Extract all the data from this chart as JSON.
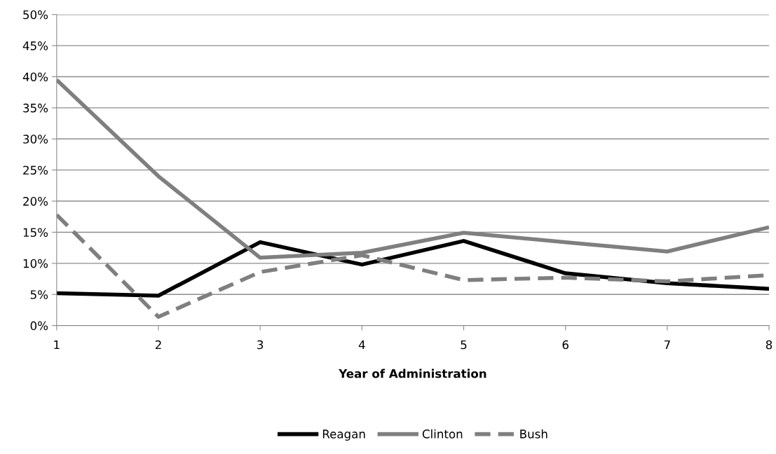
{
  "chart_data": {
    "type": "line",
    "xlabel": "Year of Administration",
    "x": [
      1,
      2,
      3,
      4,
      5,
      6,
      7,
      8
    ],
    "xlim": [
      1,
      8
    ],
    "xticks": [
      1,
      2,
      3,
      4,
      5,
      6,
      7,
      8
    ],
    "ylim": [
      0,
      50
    ],
    "yticks": [
      {
        "value": 0,
        "label": "0%"
      },
      {
        "value": 5,
        "label": "5%"
      },
      {
        "value": 10,
        "label": "10%"
      },
      {
        "value": 15,
        "label": "15%"
      },
      {
        "value": 20,
        "label": "20%"
      },
      {
        "value": 25,
        "label": "25%"
      },
      {
        "value": 30,
        "label": "30%"
      },
      {
        "value": 35,
        "label": "35%"
      },
      {
        "value": 40,
        "label": "40%"
      },
      {
        "value": 45,
        "label": "45%"
      },
      {
        "value": 50,
        "label": "50%"
      }
    ],
    "grid": "y",
    "legend": "bottom",
    "marker": "none",
    "series": [
      {
        "name": "Reagan",
        "color": "#000000",
        "line_style": "solid",
        "values": [
          5.2,
          4.8,
          13.4,
          9.8,
          13.6,
          8.4,
          6.8,
          5.9
        ]
      },
      {
        "name": "Clinton",
        "color": "#7f7f7f",
        "line_style": "solid",
        "values": [
          39.5,
          24.0,
          10.9,
          11.7,
          14.9,
          13.4,
          11.9,
          15.8
        ]
      },
      {
        "name": "Bush",
        "color": "#7f7f7f",
        "line_style": "dashed",
        "values": [
          17.8,
          1.4,
          8.6,
          11.3,
          7.3,
          7.7,
          7.1,
          8.1
        ]
      }
    ]
  }
}
